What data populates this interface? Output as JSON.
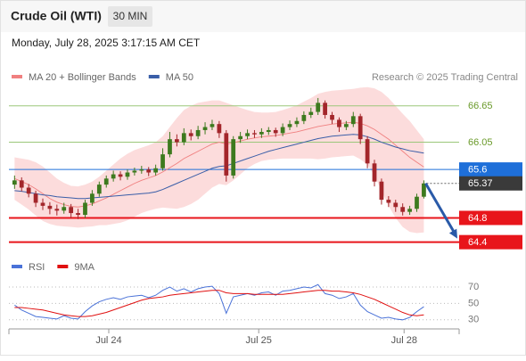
{
  "header": {
    "title": "Crude Oil (WTI)",
    "timeframe": "30 MIN",
    "timestamp": "Monday, July 28, 2025 3:17:15 AM CET"
  },
  "chart_data": [
    {
      "type": "candlestick",
      "source": "Research © 2025 Trading Central",
      "up_color": "#3d7a1e",
      "down_color": "#a3262b",
      "xlim": [
        -0.8,
        63
      ],
      "ylim": [
        64.13,
        67.0
      ],
      "open": [
        65.35,
        65.42,
        65.3,
        65.2,
        65.05,
        65.0,
        64.95,
        64.92,
        64.98,
        64.88,
        64.85,
        65.05,
        65.2,
        65.35,
        65.45,
        65.52,
        65.48,
        65.55,
        65.58,
        65.6,
        65.55,
        65.62,
        65.85,
        66.1,
        66.05,
        66.2,
        66.15,
        66.25,
        66.3,
        66.35,
        66.2,
        65.5,
        66.1,
        66.15,
        66.2,
        66.18,
        66.22,
        66.25,
        66.2,
        66.3,
        66.35,
        66.4,
        66.5,
        66.55,
        66.7,
        66.5,
        66.42,
        66.3,
        66.35,
        66.48,
        66.1,
        65.7,
        65.4,
        65.1,
        65.05,
        64.98,
        64.9,
        64.95,
        65.15
      ],
      "high": [
        65.5,
        65.47,
        65.36,
        65.25,
        65.12,
        65.06,
        65.02,
        65.05,
        65.03,
        64.95,
        65.1,
        65.26,
        65.4,
        65.5,
        65.58,
        65.57,
        65.6,
        65.63,
        65.66,
        65.64,
        65.68,
        65.95,
        66.22,
        66.18,
        66.28,
        66.26,
        66.32,
        66.38,
        66.42,
        66.4,
        66.25,
        66.15,
        66.22,
        66.26,
        66.25,
        66.28,
        66.3,
        66.29,
        66.36,
        66.41,
        66.46,
        66.56,
        66.62,
        66.78,
        66.74,
        66.55,
        66.46,
        66.4,
        66.55,
        66.52,
        66.15,
        65.76,
        65.45,
        65.16,
        65.1,
        65.04,
        65.0,
        65.2,
        65.42
      ],
      "low": [
        65.28,
        65.24,
        65.14,
        64.98,
        64.93,
        64.86,
        64.84,
        64.87,
        64.8,
        64.78,
        64.8,
        65.0,
        65.15,
        65.3,
        65.4,
        65.42,
        65.43,
        65.5,
        65.53,
        65.49,
        65.5,
        65.58,
        65.8,
        65.98,
        66.0,
        66.08,
        66.1,
        66.18,
        66.25,
        66.12,
        65.4,
        65.45,
        66.04,
        66.1,
        66.12,
        66.12,
        66.17,
        66.14,
        66.15,
        66.25,
        66.3,
        66.35,
        66.45,
        66.5,
        66.44,
        66.35,
        66.22,
        66.25,
        66.3,
        66.02,
        65.62,
        65.32,
        65.02,
        64.98,
        64.9,
        64.84,
        64.85,
        64.9,
        65.12
      ],
      "close": [
        65.42,
        65.3,
        65.2,
        65.05,
        65.0,
        64.95,
        64.92,
        64.98,
        64.88,
        64.85,
        65.05,
        65.2,
        65.35,
        65.45,
        65.52,
        65.48,
        65.55,
        65.58,
        65.6,
        65.55,
        65.62,
        65.85,
        66.1,
        66.05,
        66.2,
        66.15,
        66.25,
        66.3,
        66.35,
        66.2,
        65.5,
        66.1,
        66.15,
        66.2,
        66.18,
        66.22,
        66.25,
        66.2,
        66.3,
        66.35,
        66.4,
        66.5,
        66.55,
        66.7,
        66.5,
        66.42,
        66.3,
        66.35,
        66.48,
        66.1,
        65.7,
        65.4,
        65.1,
        65.05,
        64.98,
        64.9,
        64.95,
        65.15,
        65.37
      ],
      "series": [
        {
          "name": "MA 20 + Bollinger Bands",
          "color": "#f08080",
          "band_color": "#fbd3d3",
          "values": [
            65.45,
            65.4,
            65.35,
            65.28,
            65.2,
            65.12,
            65.06,
            65.02,
            64.99,
            64.98,
            65.0,
            65.03,
            65.08,
            65.13,
            65.19,
            65.25,
            65.31,
            65.37,
            65.42,
            65.46,
            65.5,
            65.56,
            65.63,
            65.7,
            65.78,
            65.84,
            65.9,
            65.96,
            66.02,
            66.05,
            66.02,
            66.04,
            66.07,
            66.1,
            66.12,
            66.14,
            66.15,
            66.16,
            66.18,
            66.2,
            66.22,
            66.25,
            66.28,
            66.31,
            66.33,
            66.35,
            66.36,
            66.37,
            66.38,
            66.36,
            66.32,
            66.26,
            66.18,
            66.1,
            66.0,
            65.9,
            65.8,
            65.72,
            65.64
          ],
          "upper": [
            65.8,
            65.78,
            65.76,
            65.72,
            65.65,
            65.55,
            65.45,
            65.38,
            65.33,
            65.32,
            65.35,
            65.4,
            65.48,
            65.58,
            65.68,
            65.78,
            65.86,
            65.92,
            65.96,
            66.0,
            66.05,
            66.15,
            66.3,
            66.45,
            66.58,
            66.65,
            66.7,
            66.72,
            66.74,
            66.74,
            66.7,
            66.66,
            66.62,
            66.58,
            66.55,
            66.54,
            66.54,
            66.55,
            66.58,
            66.62,
            66.66,
            66.72,
            66.78,
            66.85,
            66.88,
            66.9,
            66.91,
            66.92,
            66.93,
            66.95,
            66.96,
            66.94,
            66.88,
            66.78,
            66.65,
            66.52,
            66.4,
            66.25,
            66.1
          ],
          "lower": [
            65.1,
            65.02,
            64.94,
            64.84,
            64.75,
            64.7,
            64.67,
            64.66,
            64.65,
            64.64,
            64.65,
            64.66,
            64.68,
            64.68,
            64.7,
            64.72,
            64.76,
            64.82,
            64.88,
            64.92,
            64.95,
            64.97,
            64.96,
            64.95,
            64.98,
            65.03,
            65.1,
            65.2,
            65.3,
            65.36,
            65.34,
            65.42,
            65.52,
            65.62,
            65.69,
            65.74,
            65.76,
            65.77,
            65.78,
            65.78,
            65.78,
            65.78,
            65.78,
            65.77,
            65.78,
            65.8,
            65.81,
            65.82,
            65.83,
            65.77,
            65.68,
            65.5,
            65.25,
            65.0,
            64.8,
            64.65,
            64.57,
            64.55,
            64.56
          ]
        },
        {
          "name": "MA 50",
          "color": "#3a5ea8",
          "values": [
            65.25,
            65.24,
            65.22,
            65.2,
            65.18,
            65.17,
            65.15,
            65.14,
            65.13,
            65.12,
            65.12,
            65.13,
            65.14,
            65.15,
            65.16,
            65.17,
            65.18,
            65.19,
            65.2,
            65.21,
            65.23,
            65.27,
            65.32,
            65.37,
            65.42,
            65.47,
            65.52,
            65.57,
            65.62,
            65.65,
            65.66,
            65.7,
            65.74,
            65.78,
            65.82,
            65.86,
            65.9,
            65.93,
            65.96,
            65.99,
            66.02,
            66.05,
            66.08,
            66.11,
            66.13,
            66.15,
            66.16,
            66.17,
            66.18,
            66.17,
            66.14,
            66.1,
            66.05,
            66.01,
            65.97,
            65.94,
            65.91,
            65.89,
            65.87
          ]
        }
      ],
      "levels": [
        {
          "value": 66.65,
          "color": "#9bc77a",
          "label_color": "#6a9a2a",
          "style": "label"
        },
        {
          "value": 66.05,
          "color": "#9bc77a",
          "label_color": "#6a9a2a",
          "style": "label"
        },
        {
          "value": 65.6,
          "color": "#1e6fd9",
          "label_color": "#ffffff",
          "style": "tag"
        },
        {
          "value": 64.8,
          "color": "#e8151b",
          "label_color": "#ffffff",
          "style": "tag"
        },
        {
          "value": 64.4,
          "color": "#e8151b",
          "label_color": "#ffffff",
          "style": "tag"
        }
      ],
      "current": {
        "value": 65.37,
        "color": "#3a3a3a"
      },
      "arrow_color": "#2a5aa8"
    },
    {
      "type": "line",
      "xlim": [
        -0.8,
        63
      ],
      "ylim": [
        20,
        82
      ],
      "yticks": [
        30,
        50,
        70
      ],
      "grid": true,
      "xticks": [
        {
          "value": 13.35,
          "label": "Jul 24"
        },
        {
          "value": 34.6,
          "label": "Jul 25"
        },
        {
          "value": 55.2,
          "label": "Jul 28"
        }
      ],
      "series": [
        {
          "name": "RSI",
          "color": "#4a72d8",
          "values": [
            48,
            42,
            38,
            34,
            33,
            32,
            31,
            35,
            32,
            31,
            40,
            47,
            52,
            55,
            57,
            55,
            58,
            59,
            60,
            57,
            60,
            66,
            70,
            65,
            68,
            64,
            68,
            70,
            71,
            62,
            38,
            58,
            60,
            62,
            60,
            63,
            64,
            60,
            65,
            66,
            68,
            70,
            69,
            73,
            62,
            60,
            56,
            58,
            62,
            48,
            40,
            36,
            32,
            33,
            31,
            30,
            33,
            40,
            46
          ]
        },
        {
          "name": "9MA",
          "color": "#e01010",
          "values": [
            45,
            45,
            44,
            43,
            42,
            40,
            38,
            36,
            35,
            34,
            34,
            35,
            37,
            39,
            42,
            45,
            48,
            51,
            54,
            56,
            57,
            58,
            60,
            61,
            62,
            63,
            64,
            65,
            66,
            66,
            63,
            62,
            62,
            62,
            61,
            61,
            61,
            61,
            61,
            62,
            63,
            64,
            65,
            66,
            66,
            65,
            65,
            64,
            63,
            61,
            58,
            55,
            51,
            47,
            43,
            39,
            36,
            35,
            36
          ]
        }
      ]
    }
  ]
}
